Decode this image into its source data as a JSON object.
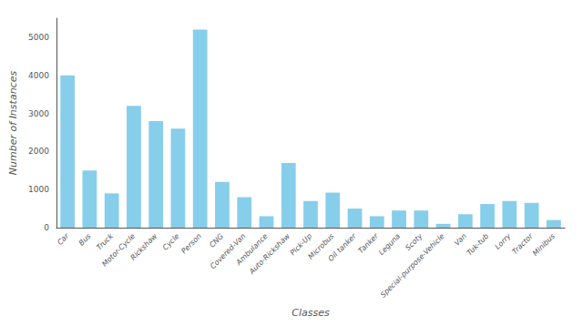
{
  "chart_data": {
    "type": "bar",
    "categories": [
      "Car",
      "Bus",
      "Truck",
      "Motor-Cycle",
      "Rickshaw",
      "Cycle",
      "Person",
      "CNG",
      "Covered-Van",
      "Ambulance",
      "Auto-Rickshaw",
      "Pick-Up",
      "Microbus",
      "Oil tanker",
      "Tanker",
      "Leguna",
      "Scoty",
      "Special-purpose-Vehicle",
      "Van",
      "Tuk-tub",
      "Lorry",
      "Tractor",
      "Minibus"
    ],
    "values": [
      4000,
      1500,
      900,
      3200,
      2800,
      2600,
      5200,
      1200,
      800,
      300,
      1700,
      700,
      920,
      500,
      300,
      450,
      450,
      100,
      350,
      620,
      700,
      650,
      200
    ],
    "color": "#87CEEB",
    "xlabel": "Classes",
    "ylabel": "Number of Instances",
    "ylim": [
      0,
      5500
    ],
    "yticks": [
      0,
      1000,
      2000,
      3000,
      4000,
      5000
    ],
    "grid": false
  }
}
